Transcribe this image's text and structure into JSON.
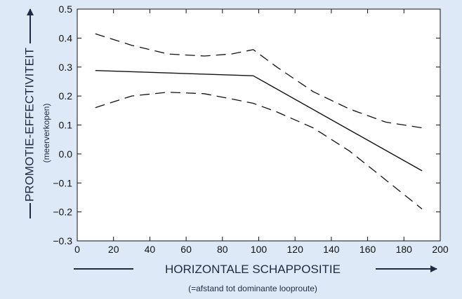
{
  "chart_data": {
    "type": "line",
    "xlabel": "HORIZONTALE SCHAPPOSITIE",
    "xlabel_sub": "(=afstand tot dominante looproute)",
    "ylabel": "PROMOTIE-EFFECTIVITEIT",
    "ylabel_sub": "(meerverkopen)",
    "xlim": [
      0,
      200
    ],
    "ylim": [
      -0.3,
      0.5
    ],
    "x_ticks": [
      0,
      20,
      40,
      60,
      80,
      100,
      120,
      140,
      160,
      180,
      200
    ],
    "y_ticks": [
      0.5,
      0.4,
      0.3,
      0.2,
      0.1,
      0.0,
      -0.1,
      -0.2,
      -0.3
    ],
    "y_tick_labels": [
      "0.5",
      "0.4",
      "0.3",
      "0.2",
      "0.1",
      "0.0",
      "−0.1",
      "−0.2",
      "−0.3"
    ],
    "grid": false,
    "series": [
      {
        "style": "solid",
        "color": "#111111",
        "x": [
          10,
          97,
          190
        ],
        "y": [
          0.288,
          0.27,
          -0.058
        ]
      },
      {
        "style": "dashed",
        "color": "#111111",
        "x": [
          10,
          30,
          50,
          70,
          85,
          97,
          110,
          130,
          150,
          170,
          190
        ],
        "y": [
          0.415,
          0.375,
          0.345,
          0.338,
          0.345,
          0.36,
          0.3,
          0.215,
          0.155,
          0.11,
          0.09
        ]
      },
      {
        "style": "dashed",
        "color": "#111111",
        "x": [
          10,
          30,
          50,
          70,
          85,
          97,
          110,
          130,
          150,
          170,
          190
        ],
        "y": [
          0.16,
          0.2,
          0.213,
          0.208,
          0.19,
          0.175,
          0.145,
          0.09,
          0.01,
          -0.09,
          -0.19
        ]
      }
    ]
  }
}
